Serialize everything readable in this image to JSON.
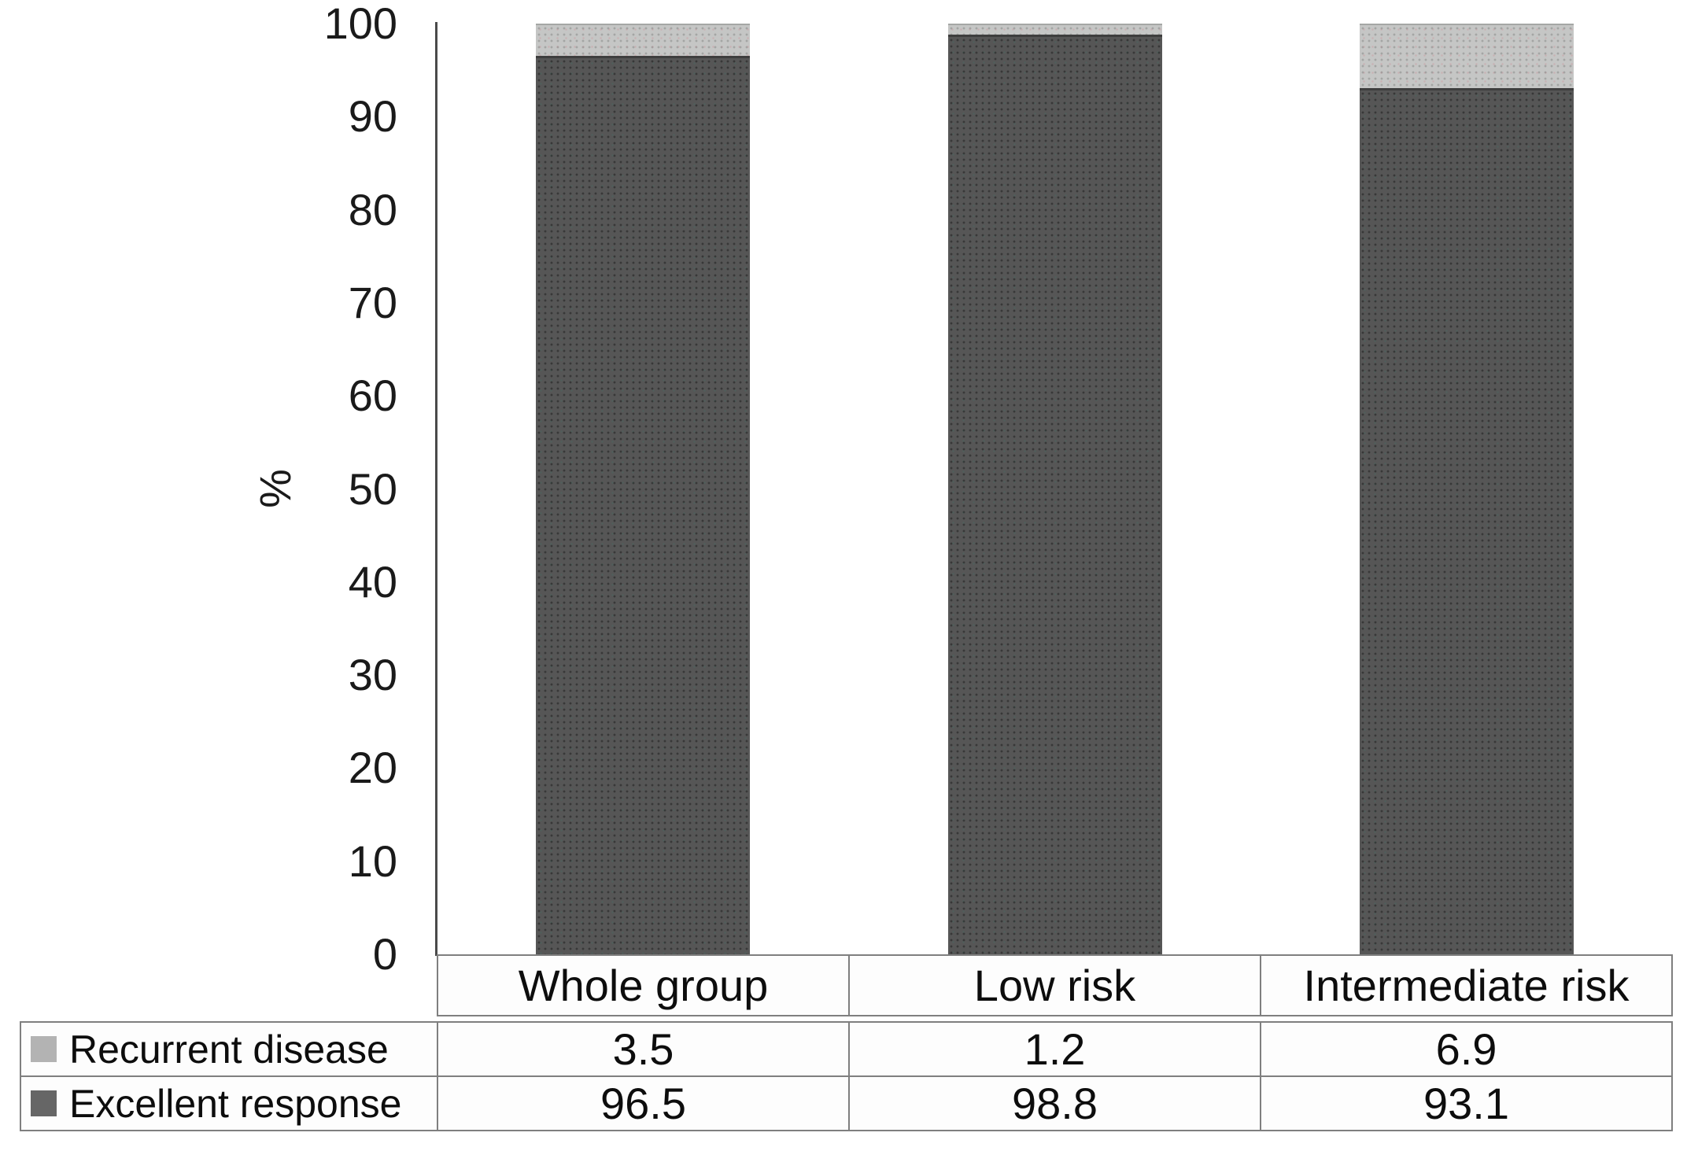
{
  "chart_data": {
    "type": "bar",
    "stacked": true,
    "title": "",
    "xlabel": "",
    "ylabel": "%",
    "ylim": [
      0,
      100
    ],
    "yticks": [
      0,
      10,
      20,
      30,
      40,
      50,
      60,
      70,
      80,
      90,
      100
    ],
    "grid": false,
    "legend_position": "data-table-left",
    "categories": [
      "Whole group",
      "Low risk",
      "Intermediate risk"
    ],
    "series": [
      {
        "name": "Recurrent disease",
        "values": [
          3.5,
          1.2,
          6.9
        ],
        "color": "#c5c6c5",
        "legend_color": "#b3b3b3",
        "stack_order": "top"
      },
      {
        "name": "Excellent response",
        "values": [
          96.5,
          98.8,
          93.1
        ],
        "color": "#565656",
        "legend_color": "#666666",
        "stack_order": "bottom"
      }
    ],
    "value_labels": {
      "Recurrent disease": [
        "3.5",
        "1.2",
        "6.9"
      ],
      "Excellent response": [
        "96.5",
        "98.8",
        "93.1"
      ]
    }
  }
}
